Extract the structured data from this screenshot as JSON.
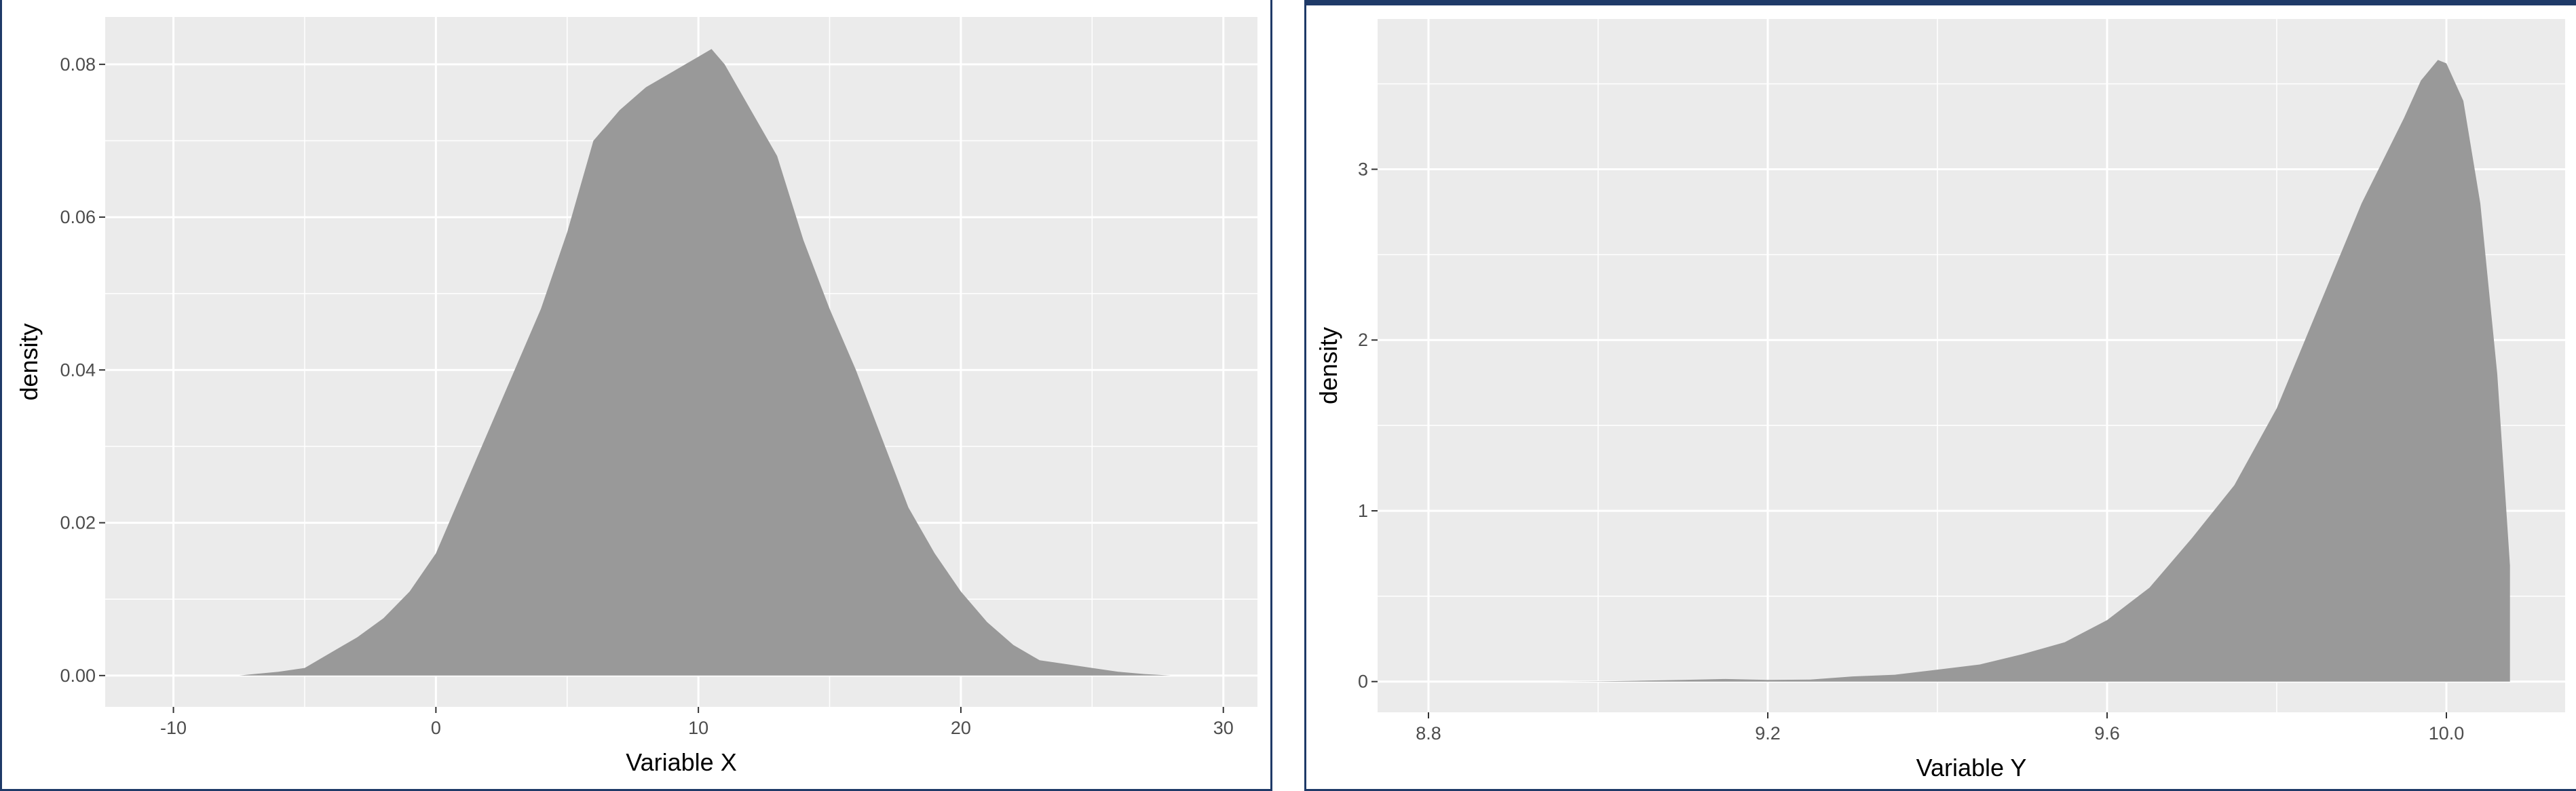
{
  "chart_data": [
    {
      "type": "area",
      "title": "",
      "xlabel": "Variable X",
      "ylabel": "density",
      "xlim": [
        -12.6,
        31.3
      ],
      "ylim": [
        -0.0041,
        0.0862
      ],
      "x_ticks": [
        -10,
        0,
        10,
        20,
        30
      ],
      "x_tick_labels": [
        "-10",
        "0",
        "10",
        "20",
        "30"
      ],
      "y_ticks": [
        0.0,
        0.02,
        0.04,
        0.06,
        0.08
      ],
      "y_tick_labels": [
        "0.00",
        "0.02",
        "0.04",
        "0.06",
        "0.08"
      ],
      "grid": true,
      "fill_color": "#999999",
      "panel_color": "#ebebeb",
      "series": [
        {
          "x": [
            -7.5,
            -6,
            -5,
            -4,
            -3,
            -2,
            -1,
            0,
            1,
            2,
            3,
            4,
            5,
            6,
            7,
            8,
            9,
            10,
            10.5,
            11,
            12,
            13,
            14,
            15,
            16,
            17,
            18,
            19,
            20,
            21,
            22,
            23,
            24,
            25,
            26,
            27,
            28
          ],
          "y": [
            0.0,
            0.0005,
            0.001,
            0.003,
            0.005,
            0.0075,
            0.011,
            0.016,
            0.024,
            0.032,
            0.04,
            0.048,
            0.058,
            0.07,
            0.074,
            0.077,
            0.079,
            0.081,
            0.082,
            0.08,
            0.074,
            0.068,
            0.057,
            0.048,
            0.04,
            0.031,
            0.022,
            0.016,
            0.011,
            0.007,
            0.004,
            0.002,
            0.0015,
            0.001,
            0.0005,
            0.0002,
            0.0
          ]
        }
      ]
    },
    {
      "type": "area",
      "title": "",
      "xlabel": "Variable Y",
      "ylabel": "density",
      "xlim": [
        8.74,
        10.14
      ],
      "ylim": [
        -0.18,
        3.88
      ],
      "x_ticks": [
        8.8,
        9.2,
        9.6,
        10.0
      ],
      "x_tick_labels": [
        "8.8",
        "9.2",
        "9.6",
        "10.0"
      ],
      "y_ticks": [
        0,
        1,
        2,
        3
      ],
      "y_tick_labels": [
        "0",
        "1",
        "2",
        "3"
      ],
      "grid": true,
      "fill_color": "#999999",
      "panel_color": "#ebebeb",
      "series": [
        {
          "x": [
            8.95,
            9.0,
            9.05,
            9.1,
            9.15,
            9.2,
            9.25,
            9.3,
            9.35,
            9.4,
            9.45,
            9.5,
            9.55,
            9.6,
            9.65,
            9.7,
            9.75,
            9.8,
            9.85,
            9.9,
            9.95,
            9.97,
            9.99,
            10.0,
            10.02,
            10.04,
            10.06,
            10.075
          ],
          "y": [
            0.0,
            0.001,
            0.005,
            0.01,
            0.015,
            0.01,
            0.012,
            0.03,
            0.04,
            0.07,
            0.1,
            0.16,
            0.23,
            0.36,
            0.55,
            0.84,
            1.15,
            1.6,
            2.2,
            2.8,
            3.3,
            3.52,
            3.64,
            3.62,
            3.4,
            2.8,
            1.8,
            0.68
          ]
        }
      ]
    }
  ]
}
